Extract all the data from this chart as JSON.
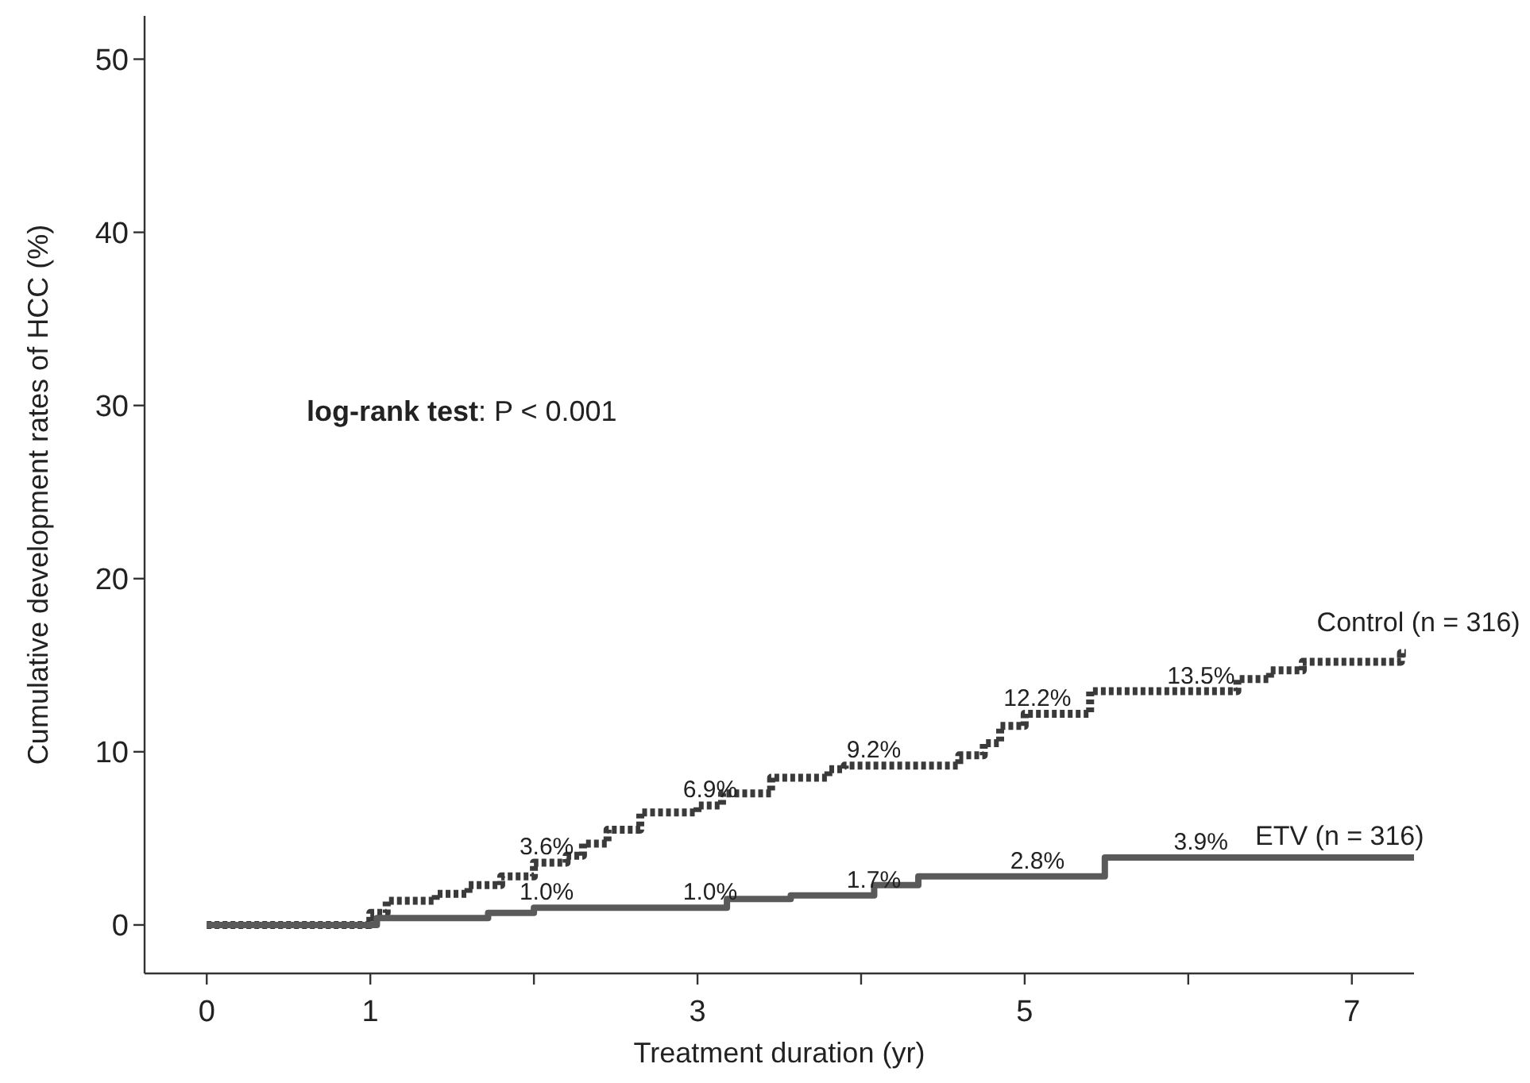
{
  "chart_data": {
    "type": "step",
    "xlabel": "Treatment duration (yr)",
    "ylabel": "Cumulative development rates of HCC (%)",
    "xlim": [
      -0.38,
      7.38
    ],
    "ylim": [
      -2.8,
      52.5
    ],
    "xticks": [
      0,
      1,
      {
        "value": 2,
        "label": null
      },
      3,
      {
        "value": 4,
        "label": null
      },
      5,
      {
        "value": 6,
        "label": null
      },
      7
    ],
    "yticks": [
      0,
      10,
      20,
      30,
      40,
      50
    ],
    "grid": false,
    "marker": "none",
    "series": [
      {
        "name": "Control (n = 316)",
        "color": "#3a3a3a",
        "line_style": "dotted",
        "x": [
          0,
          1.0,
          1.1,
          1.4,
          1.6,
          1.8,
          2.0,
          2.2,
          2.3,
          2.45,
          2.65,
          3.0,
          3.15,
          3.45,
          3.8,
          3.9,
          4.6,
          4.75,
          4.85,
          5.0,
          5.4,
          6.3,
          6.5,
          6.7,
          7.3,
          7.33
        ],
        "values": [
          0,
          0.7,
          1.4,
          1.8,
          2.3,
          2.8,
          3.6,
          4.0,
          4.7,
          5.5,
          6.5,
          6.9,
          7.6,
          8.5,
          9.0,
          9.2,
          9.8,
          10.5,
          11.5,
          12.2,
          13.5,
          14.2,
          14.7,
          15.2,
          15.7,
          15.7
        ]
      },
      {
        "name": "ETV (n = 316)",
        "color": "#5a5a5a",
        "line_style": "solid",
        "x": [
          0,
          1.04,
          1.72,
          2.0,
          3.18,
          3.57,
          4.08,
          4.35,
          5.49,
          7.38
        ],
        "values": [
          0,
          0.4,
          0.7,
          1.0,
          1.5,
          1.7,
          2.3,
          2.8,
          3.9,
          3.9
        ]
      }
    ],
    "annotations": [
      "log-rank test: P < 0.001",
      {
        "text": "3.6%",
        "x": 2,
        "y": 3.6
      },
      {
        "text": "6.9%",
        "x": 3,
        "y": 6.9
      },
      {
        "text": "9.2%",
        "x": 4,
        "y": 9.2
      },
      {
        "text": "12.2%",
        "x": 5,
        "y": 12.2
      },
      {
        "text": "13.5%",
        "x": 6,
        "y": 13.5
      },
      {
        "text": "1.0%",
        "x": 2,
        "y": 1.0
      },
      {
        "text": "1.0%",
        "x": 3,
        "y": 1.0
      },
      {
        "text": "1.7%",
        "x": 4,
        "y": 1.7
      },
      {
        "text": "2.8%",
        "x": 5,
        "y": 2.8
      },
      {
        "text": "3.9%",
        "x": 6,
        "y": 3.9
      }
    ]
  }
}
